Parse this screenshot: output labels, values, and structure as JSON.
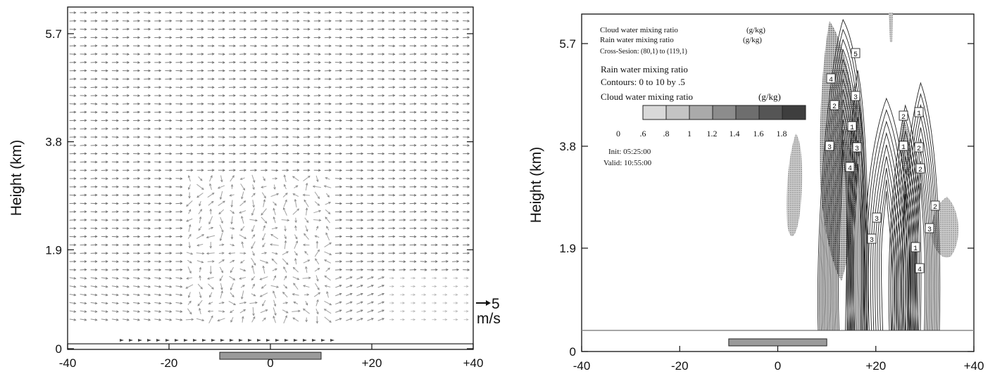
{
  "chart_data": [
    {
      "type": "vector-field",
      "ylabel": "Height (km)",
      "y_ticks": [
        "0",
        "1.9",
        "3.8",
        "5.7"
      ],
      "x_ticks": [
        "-40",
        "-20",
        "0",
        "+20",
        "+40"
      ],
      "xlim": [
        -40,
        40
      ],
      "ylim": [
        0,
        6.1
      ],
      "surface_height_km": 0.35,
      "domain_bar": [
        -10,
        10
      ],
      "reference_vector": {
        "value": "5",
        "unit": "m/s"
      },
      "mean_wind_direction": "east",
      "convergence_zone": [
        -10,
        12
      ],
      "colors": {
        "arrows": "#555555",
        "bar_fill": "#9a9a9a",
        "axes": "#111111"
      }
    },
    {
      "type": "contour",
      "ylabel": "Height (km)",
      "y_ticks": [
        "0",
        "1.9",
        "3.8",
        "5.7"
      ],
      "x_ticks": [
        "-40",
        "-20",
        "0",
        "+20",
        "+40"
      ],
      "xlim": [
        -40,
        40
      ],
      "ylim": [
        0,
        6.1
      ],
      "surface_height_km": 0.35,
      "domain_bar": [
        -10,
        10
      ],
      "legend": {
        "line1": "Cloud water mixing ratio",
        "line1_unit": "(g/kg)",
        "line2": "Rain water mixing ratio",
        "line2_unit": "(g/kg)",
        "cross_section": "Cross-Sesion: (80,1) to (119,1)",
        "rain_title": "Rain water mixing ratio",
        "contours_text": "Contours: 0 to 10 by .5",
        "cloud_title": "Cloud water mixing ratio",
        "cloud_unit": "(g/kg)",
        "scale_labels": [
          "0",
          ".6",
          ".8",
          "1",
          "1.2",
          "1.4",
          "1.6",
          "1.8"
        ],
        "scale_colors": [
          "#d9d9d9",
          "#c4c4c4",
          "#aaaaaa",
          "#8c8c8c",
          "#6e6e6e",
          "#555555",
          "#3e3e3e"
        ],
        "init": "Init:  05:25:00",
        "valid": "Valid:  10:55:00"
      },
      "contour_box_labels": [
        "5",
        "4",
        "3",
        "3",
        "4",
        "3",
        "3",
        "3",
        "2",
        "1",
        "1",
        "2",
        "2",
        "3",
        "2",
        "1",
        "4",
        "2",
        "1"
      ]
    }
  ]
}
